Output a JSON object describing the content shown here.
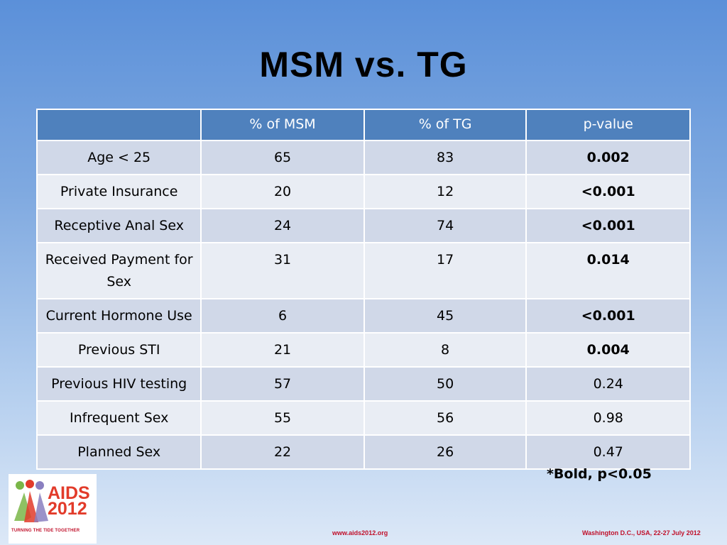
{
  "slide": {
    "title": "MSM vs. TG",
    "footnote": "*Bold, p<0.05"
  },
  "table": {
    "headers": [
      "",
      "% of MSM",
      "% of TG",
      "p-value"
    ],
    "rows": [
      {
        "label": "Age < 25",
        "msm": "65",
        "tg": "83",
        "p": "0.002",
        "bold": true
      },
      {
        "label": "Private Insurance",
        "msm": "20",
        "tg": "12",
        "p": "<0.001",
        "bold": true
      },
      {
        "label": "Receptive Anal Sex",
        "msm": "24",
        "tg": "74",
        "p": "<0.001",
        "bold": true
      },
      {
        "label": "Received Payment for Sex",
        "msm": "31",
        "tg": "17",
        "p": "0.014",
        "bold": true
      },
      {
        "label": "Current Hormone Use",
        "msm": "6",
        "tg": "45",
        "p": "<0.001",
        "bold": true
      },
      {
        "label": "Previous STI",
        "msm": "21",
        "tg": "8",
        "p": "0.004",
        "bold": true
      },
      {
        "label": "Previous HIV testing",
        "msm": "57",
        "tg": "50",
        "p": "0.24",
        "bold": false
      },
      {
        "label": "Infrequent Sex",
        "msm": "55",
        "tg": "56",
        "p": "0.98",
        "bold": false
      },
      {
        "label": "Planned Sex",
        "msm": "22",
        "tg": "26",
        "p": "0.47",
        "bold": false
      }
    ]
  },
  "footer": {
    "url": "www.aids2012.org",
    "place": "Washington D.C., USA, 22-27 July 2012",
    "logo_line1": "AIDS",
    "logo_line2": "2012",
    "logo_tagline": "TURNING THE TIDE TOGETHER"
  },
  "colors": {
    "header_bg": "#4f81bd",
    "row_odd": "#d0d8e8",
    "row_even": "#e9edf4",
    "accent_red": "#c0102a"
  }
}
